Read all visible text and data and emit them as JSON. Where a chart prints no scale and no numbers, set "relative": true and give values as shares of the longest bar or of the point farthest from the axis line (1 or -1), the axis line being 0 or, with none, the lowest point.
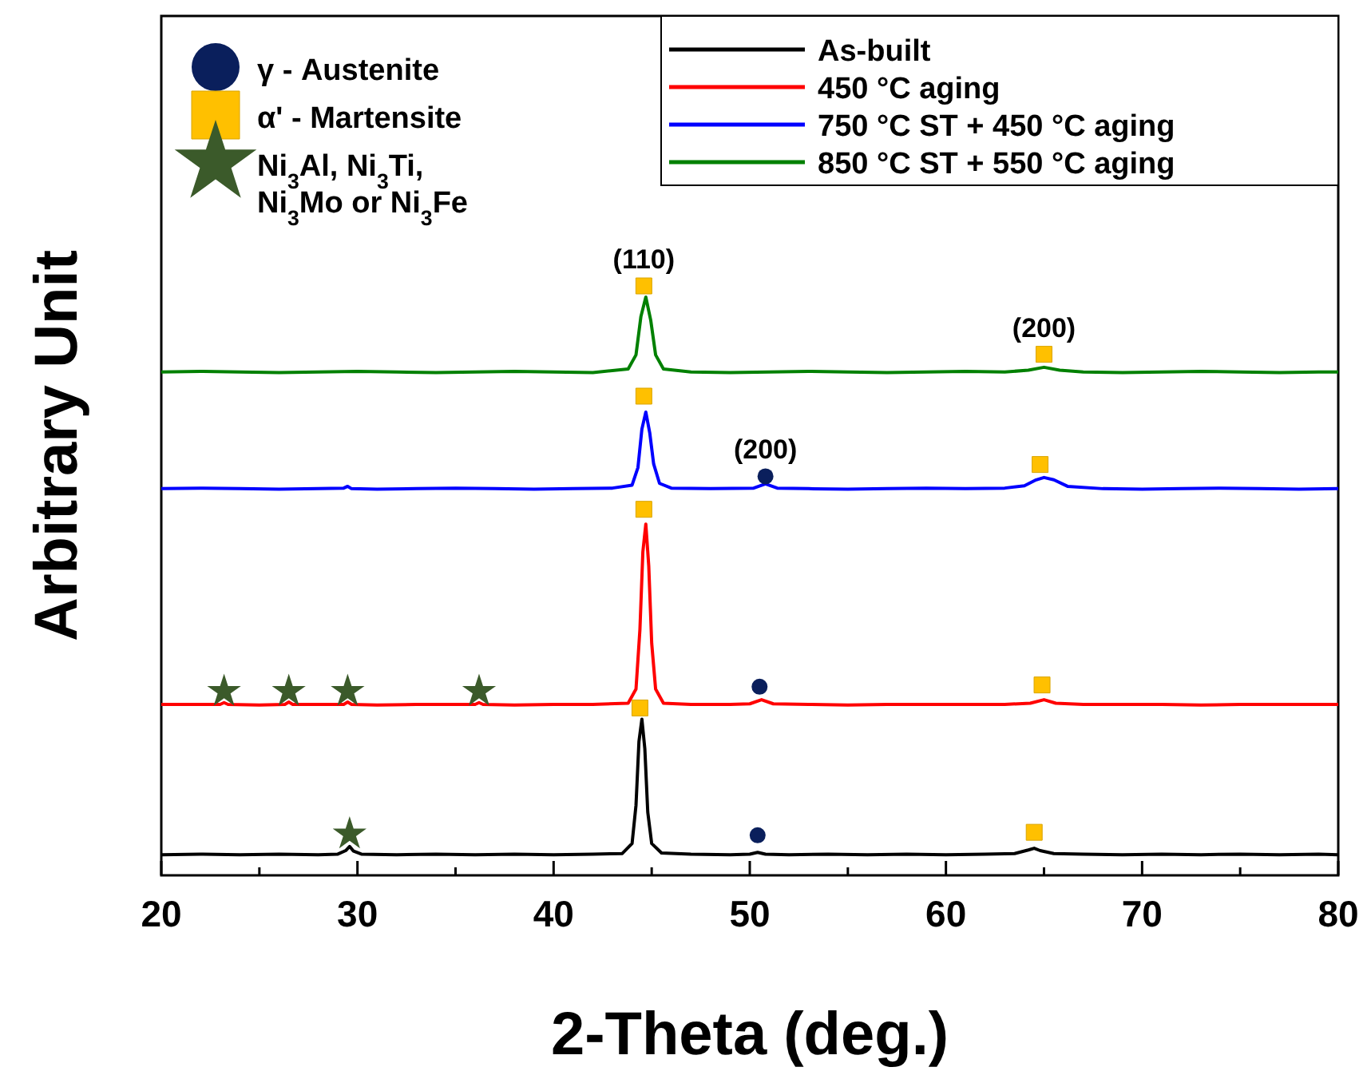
{
  "chart_data": {
    "type": "line",
    "relative": true,
    "xlabel": "2-Theta (deg.)",
    "ylabel": "Arbitrary Unit",
    "xlim": [
      20,
      80
    ],
    "xticks": [
      20,
      {
        "value": 25,
        "label": null
      },
      30,
      {
        "value": 35,
        "label": null
      },
      40,
      {
        "value": 45,
        "label": null
      },
      50,
      {
        "value": 55,
        "label": null
      },
      60,
      {
        "value": 65,
        "label": null
      },
      70,
      {
        "value": 75,
        "label": null
      },
      80
    ],
    "legend": "top",
    "tick_labels": "x",
    "series": [
      {
        "name": "As-built",
        "color": "#000000",
        "x": [
          20,
          22,
          24,
          26,
          28,
          29.0,
          29.4,
          29.6,
          29.8,
          30.2,
          32,
          34,
          36,
          38,
          40,
          42,
          43.5,
          44.0,
          44.2,
          44.35,
          44.5,
          44.65,
          44.8,
          45.0,
          45.5,
          47,
          49,
          50.0,
          50.4,
          50.8,
          52,
          54,
          56,
          58,
          60,
          62,
          63.5,
          64.2,
          64.5,
          64.8,
          65.5,
          67,
          69,
          71,
          73,
          75,
          77,
          79,
          80
        ],
        "values": [
          0.035,
          0.036,
          0.035,
          0.036,
          0.035,
          0.036,
          0.042,
          0.049,
          0.041,
          0.036,
          0.035,
          0.036,
          0.035,
          0.036,
          0.035,
          0.036,
          0.037,
          0.054,
          0.119,
          0.227,
          0.265,
          0.215,
          0.107,
          0.054,
          0.038,
          0.036,
          0.035,
          0.036,
          0.039,
          0.036,
          0.035,
          0.036,
          0.035,
          0.036,
          0.035,
          0.036,
          0.037,
          0.043,
          0.046,
          0.042,
          0.037,
          0.036,
          0.035,
          0.036,
          0.035,
          0.036,
          0.035,
          0.036,
          0.035
        ]
      },
      {
        "name": "450 °C aging",
        "color": "#ff0000",
        "x": [
          20,
          22,
          23.0,
          23.2,
          23.4,
          25,
          26.3,
          26.5,
          26.7,
          28,
          29.3,
          29.5,
          29.7,
          31,
          33,
          35,
          36.0,
          36.2,
          36.4,
          38,
          40,
          42,
          43.8,
          44.2,
          44.4,
          44.55,
          44.7,
          44.85,
          45.0,
          45.2,
          45.6,
          47,
          49,
          50.0,
          50.6,
          51.2,
          53,
          55,
          57,
          59,
          61,
          63,
          64.3,
          65.0,
          65.6,
          67,
          69,
          71,
          73,
          75,
          77,
          79,
          80
        ],
        "values": [
          0.29,
          0.29,
          0.29,
          0.293,
          0.29,
          0.289,
          0.29,
          0.294,
          0.29,
          0.29,
          0.29,
          0.294,
          0.29,
          0.289,
          0.29,
          0.29,
          0.29,
          0.293,
          0.29,
          0.289,
          0.29,
          0.29,
          0.292,
          0.316,
          0.417,
          0.549,
          0.596,
          0.525,
          0.394,
          0.316,
          0.292,
          0.29,
          0.29,
          0.291,
          0.298,
          0.291,
          0.29,
          0.289,
          0.29,
          0.29,
          0.29,
          0.29,
          0.292,
          0.298,
          0.292,
          0.29,
          0.29,
          0.29,
          0.289,
          0.29,
          0.29,
          0.29,
          0.29
        ]
      },
      {
        "name": "750 °C ST + 450 °C aging",
        "color": "#0000ff",
        "x": [
          20,
          22,
          24,
          26,
          28,
          29.3,
          29.5,
          29.7,
          31,
          33,
          35,
          37,
          39,
          41,
          43,
          44.0,
          44.3,
          44.5,
          44.7,
          44.9,
          45.1,
          45.4,
          46,
          48,
          50.2,
          50.8,
          51.4,
          53,
          55,
          57,
          59,
          61,
          63,
          64.0,
          64.6,
          65.0,
          65.5,
          66.2,
          68,
          70,
          72,
          74,
          76,
          78,
          80
        ],
        "values": [
          0.656,
          0.657,
          0.656,
          0.655,
          0.656,
          0.657,
          0.66,
          0.656,
          0.655,
          0.656,
          0.657,
          0.656,
          0.655,
          0.656,
          0.657,
          0.662,
          0.692,
          0.757,
          0.786,
          0.751,
          0.698,
          0.665,
          0.657,
          0.656,
          0.657,
          0.664,
          0.657,
          0.656,
          0.655,
          0.656,
          0.657,
          0.656,
          0.657,
          0.661,
          0.671,
          0.675,
          0.671,
          0.66,
          0.656,
          0.655,
          0.656,
          0.657,
          0.656,
          0.655,
          0.656
        ]
      },
      {
        "name": "850 °C ST + 550 °C aging",
        "color": "#008000",
        "x": [
          20,
          22,
          24,
          26,
          28,
          30,
          32,
          34,
          36,
          38,
          40,
          42,
          43.8,
          44.2,
          44.45,
          44.7,
          44.95,
          45.2,
          45.6,
          47,
          49,
          51,
          53,
          55,
          57,
          59,
          61,
          63,
          64.2,
          65.0,
          65.8,
          67,
          69,
          71,
          73,
          75,
          77,
          79,
          80
        ],
        "values": [
          0.854,
          0.855,
          0.854,
          0.853,
          0.854,
          0.855,
          0.854,
          0.853,
          0.854,
          0.855,
          0.854,
          0.853,
          0.859,
          0.883,
          0.948,
          0.981,
          0.942,
          0.883,
          0.859,
          0.854,
          0.853,
          0.854,
          0.855,
          0.854,
          0.853,
          0.854,
          0.855,
          0.854,
          0.857,
          0.862,
          0.857,
          0.854,
          0.853,
          0.854,
          0.855,
          0.854,
          0.853,
          0.854,
          0.854
        ]
      },
      {
        "name": "γ - Austenite",
        "type": "scatter",
        "marker": "circle",
        "color": "#0a1f5c",
        "x": [
          50.4,
          50.5,
          50.8
        ],
        "values": [
          0.068,
          0.32,
          0.677
        ]
      },
      {
        "name": "α' - Martensite",
        "type": "scatter",
        "marker": "square",
        "color": "#ffc000",
        "x": [
          44.4,
          44.6,
          44.6,
          44.6,
          64.5,
          64.9,
          64.8,
          65.0
        ],
        "values": [
          0.284,
          0.621,
          0.813,
          1,
          0.073,
          0.323,
          0.697,
          0.884
        ]
      },
      {
        "name": "Ni$_{3}$Al, Ni$_{3}$Ti,\nNi$_{3}$Mo or Ni$_{3}$Fe",
        "type": "scatter",
        "marker": "star",
        "color": "#3b5a2a",
        "x": [
          29.6,
          23.2,
          26.5,
          29.5,
          36.2
        ],
        "values": [
          0.07,
          0.312,
          0.312,
          0.312,
          0.312
        ]
      }
    ],
    "annotations": [
      {
        "text": "(110)",
        "x": 44.6,
        "y": 1
      },
      {
        "text": "(200)",
        "x": 65.0,
        "y": 0.884
      },
      {
        "text": "(200)",
        "x": 50.8,
        "y": 0.677
      }
    ]
  }
}
